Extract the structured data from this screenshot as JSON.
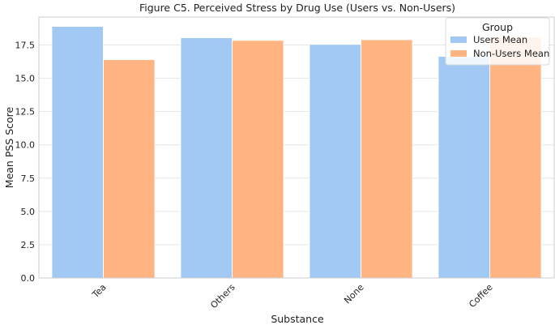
{
  "chart_data": {
    "type": "bar",
    "title": "Figure C5. Perceived Stress by Drug Use (Users vs. Non-Users)",
    "xlabel": "Substance",
    "ylabel": "Mean PSS Score",
    "categories": [
      "Tea",
      "Others",
      "None",
      "Coffee"
    ],
    "series": [
      {
        "name": "Users Mean",
        "values": [
          18.9,
          18.05,
          17.55,
          16.65
        ],
        "color": "#a1c9f4"
      },
      {
        "name": "Non-Users Mean",
        "values": [
          16.4,
          17.85,
          17.9,
          18.1
        ],
        "color": "#ffb482"
      }
    ],
    "ylim": [
      0,
      19.6
    ],
    "yticks": [
      "0.0",
      "2.5",
      "5.0",
      "7.5",
      "10.0",
      "12.5",
      "15.0",
      "17.5"
    ],
    "ytick_values": [
      0,
      2.5,
      5,
      7.5,
      10,
      12.5,
      15,
      17.5
    ],
    "legend": {
      "title": "Group",
      "placement": "top-right"
    },
    "grid": true,
    "xtick_rotation": 45
  }
}
